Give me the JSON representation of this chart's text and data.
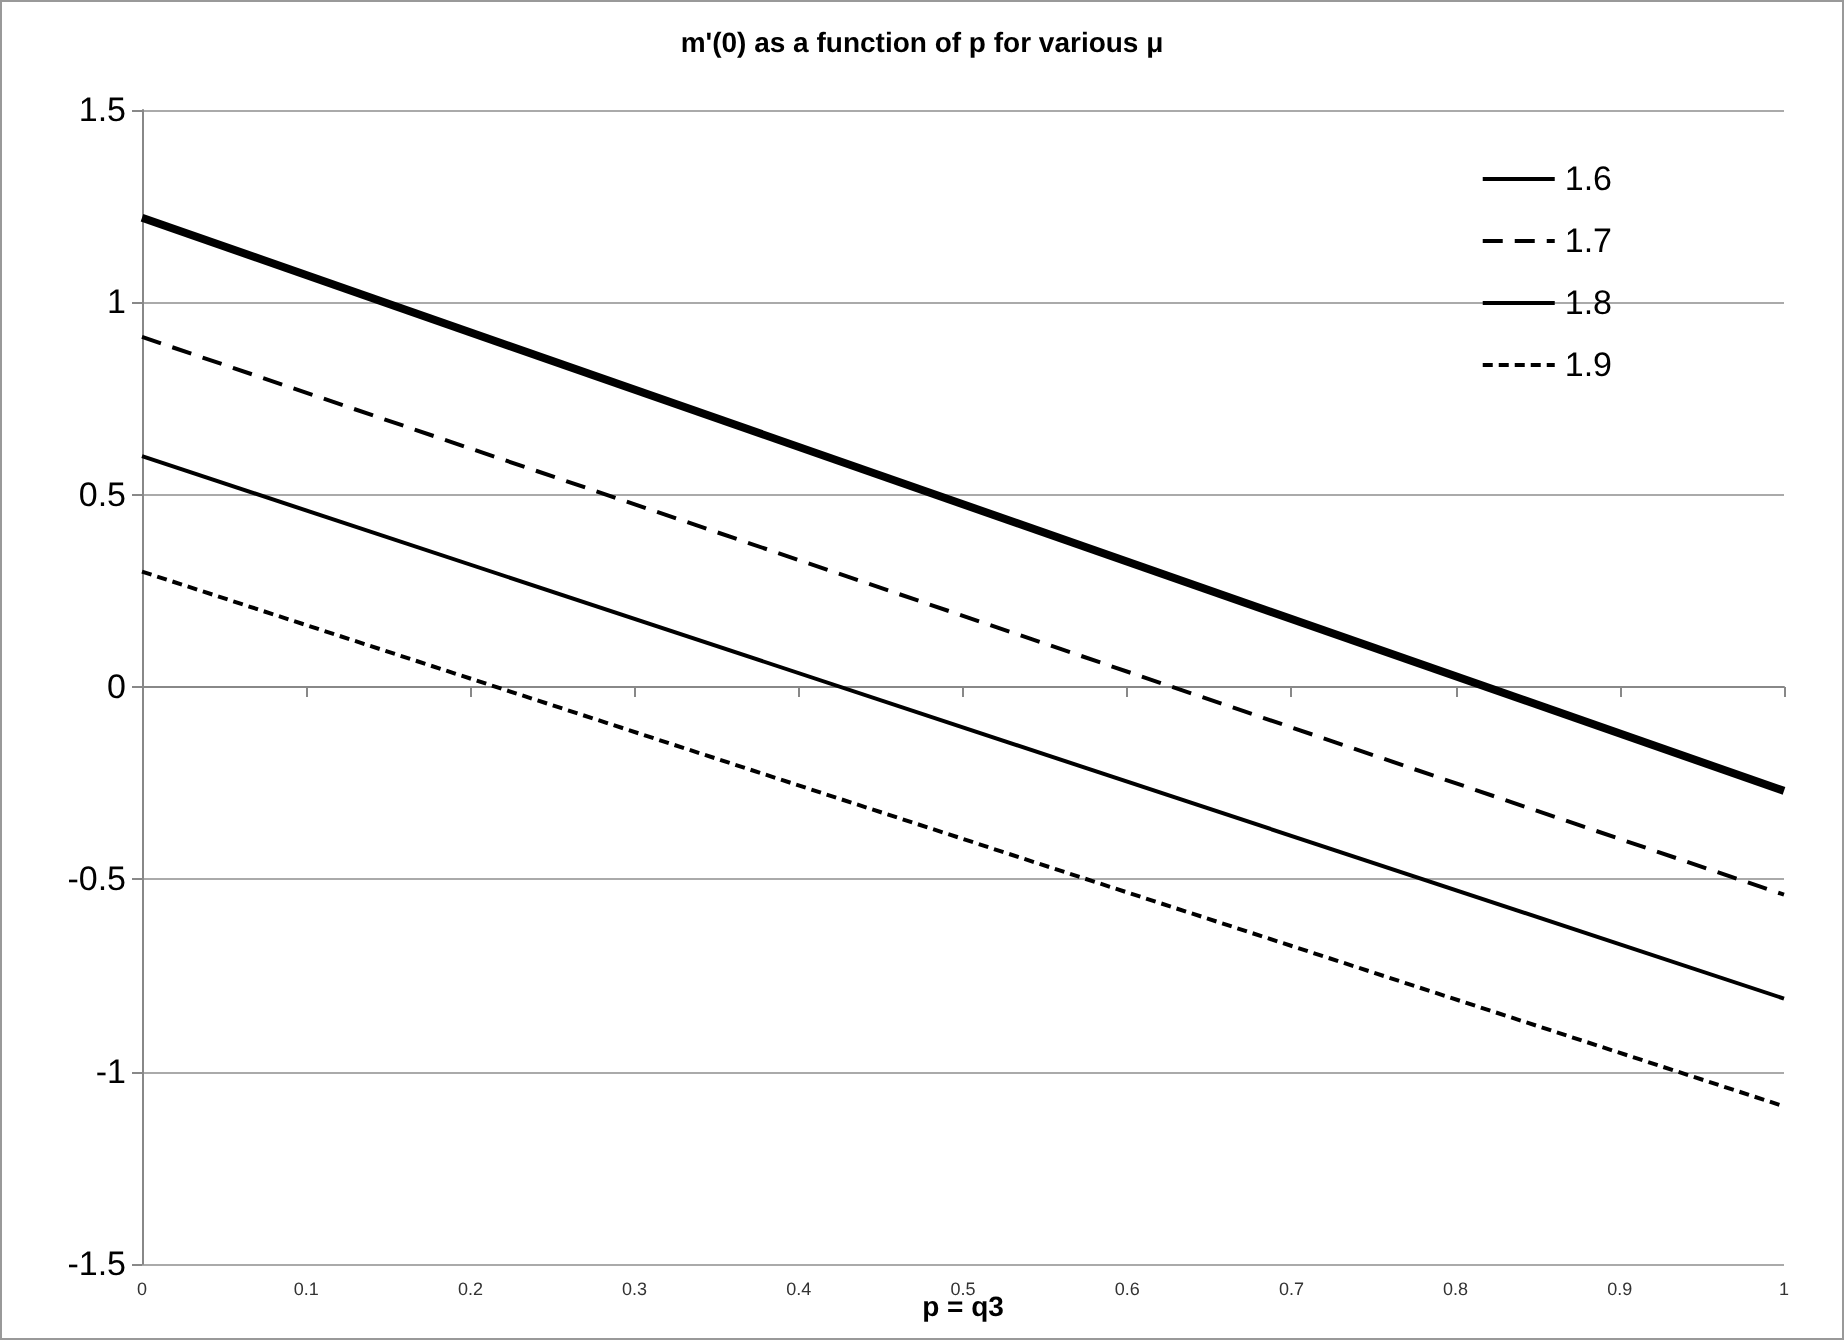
{
  "chart_data": {
    "type": "line",
    "title": "m'(0) as a function of p for various μ",
    "xlabel": "p = q3",
    "x": [
      0,
      1
    ],
    "series": [
      {
        "name": "1.6",
        "color": "#000000",
        "values": [
          1.22,
          -0.27
        ],
        "line_style": "solid"
      },
      {
        "name": "1.7",
        "color": "#000000",
        "values": [
          0.91,
          -0.54
        ],
        "line_style": "dashed"
      },
      {
        "name": "1.8",
        "color": "#000000",
        "values": [
          0.6,
          -0.81
        ],
        "line_style": "solid"
      },
      {
        "name": "1.9",
        "color": "#000000",
        "values": [
          0.3,
          -1.09
        ],
        "line_style": "dotted"
      }
    ],
    "xlim": [
      0,
      1
    ],
    "xticks": [
      0,
      0.1,
      0.2,
      0.3,
      0.4,
      0.5,
      0.6,
      0.7,
      0.8,
      0.9,
      1
    ],
    "ylim": [
      -1.5,
      1.5
    ],
    "yticks": [
      -1.5,
      -1,
      -0.5,
      0,
      0.5,
      1,
      1.5
    ],
    "grid": "y",
    "legend": "top right",
    "marker": "none"
  }
}
